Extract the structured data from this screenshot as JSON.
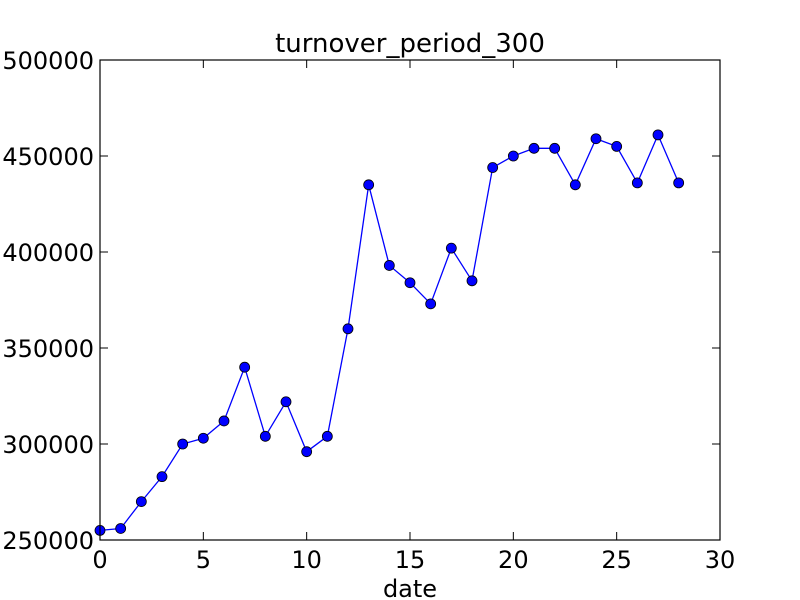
{
  "chart_data": {
    "type": "line",
    "title": "turnover_period_300",
    "xlabel": "date",
    "ylabel": "",
    "xlim": [
      0,
      30
    ],
    "ylim": [
      250000,
      500000
    ],
    "xticks": [
      "0",
      "5",
      "10",
      "15",
      "20",
      "25",
      "30"
    ],
    "yticks": [
      "250000",
      "300000",
      "350000",
      "400000",
      "450000",
      "500000"
    ],
    "grid": false,
    "legend": "none",
    "series": [
      {
        "color": "#0000ff",
        "marker": "circle",
        "x": [
          0,
          1,
          2,
          3,
          4,
          5,
          6,
          7,
          8,
          9,
          10,
          11,
          12,
          13,
          14,
          15,
          16,
          17,
          18,
          19,
          20,
          21,
          22,
          23,
          24,
          25,
          26,
          27,
          28
        ],
        "y": [
          255000,
          256000,
          270000,
          283000,
          300000,
          303000,
          312000,
          340000,
          304000,
          322000,
          296000,
          304000,
          360000,
          435000,
          393000,
          384000,
          373000,
          402000,
          385000,
          444000,
          450000,
          454000,
          454000,
          435000,
          459000,
          455000,
          436000,
          461000,
          436000
        ]
      }
    ]
  }
}
